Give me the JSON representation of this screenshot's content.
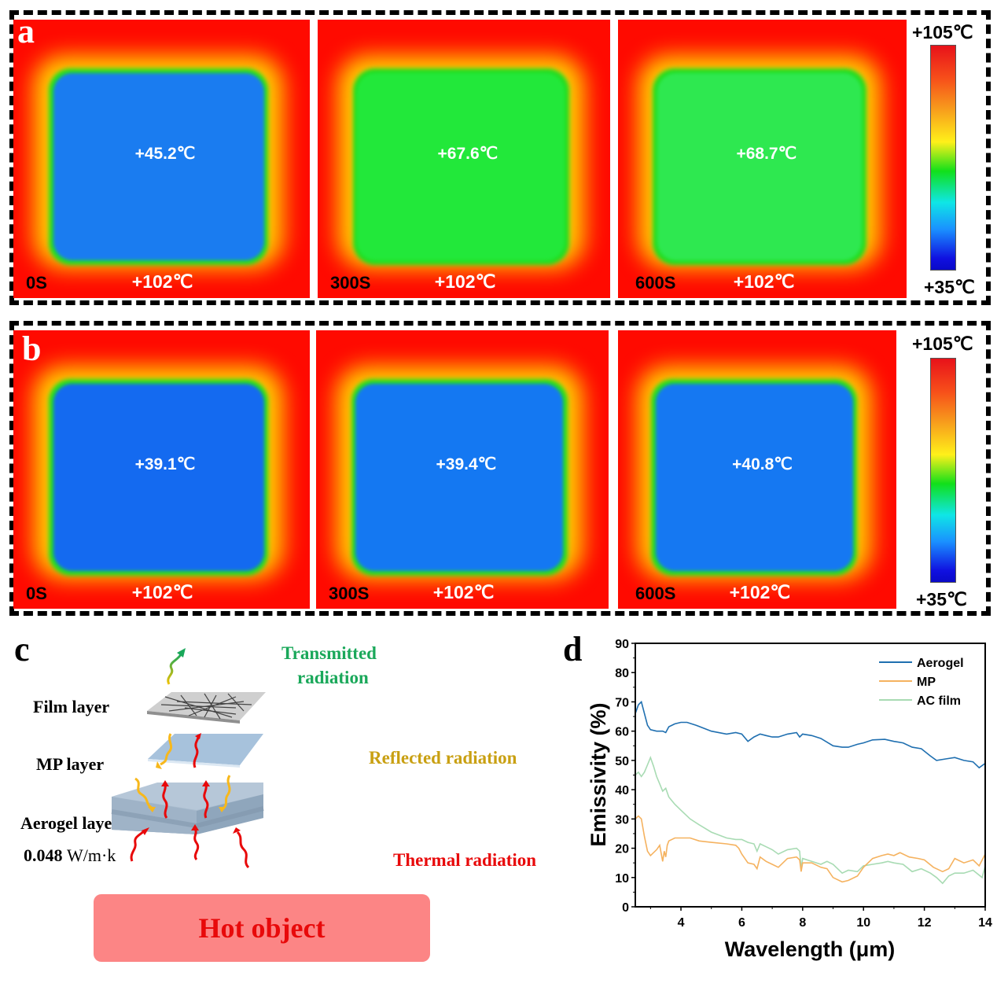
{
  "panel_a": {
    "letter": "a",
    "colorbar": {
      "max_label": "+105℃",
      "min_label": "+35℃"
    },
    "images": [
      {
        "time": "0S",
        "center_temp": "+45.2℃",
        "edge_temp": "+102℃",
        "core_color": "#1a7cf0"
      },
      {
        "time": "300S",
        "center_temp": "+67.6℃",
        "edge_temp": "+102℃",
        "core_color": "#22e83a"
      },
      {
        "time": "600S",
        "center_temp": "+68.7℃",
        "edge_temp": "+102℃",
        "core_color": "#2ee850"
      }
    ]
  },
  "panel_b": {
    "letter": "b",
    "colorbar": {
      "max_label": "+105℃",
      "min_label": "+35℃"
    },
    "images": [
      {
        "time": "0S",
        "center_temp": "+39.1℃",
        "edge_temp": "+102℃",
        "core_color": "#146af0"
      },
      {
        "time": "300S",
        "center_temp": "+39.4℃",
        "edge_temp": "+102℃",
        "core_color": "#1478f2"
      },
      {
        "time": "600S",
        "center_temp": "+40.8℃",
        "edge_temp": "+102℃",
        "core_color": "#1578f2"
      }
    ]
  },
  "panel_c": {
    "letter": "c",
    "film_layer": "Film layer",
    "mp_layer": "MP layer",
    "aerogel_layer": "Aerogel layer",
    "conductivity_value": "0.048",
    "conductivity_unit": "W/m·k",
    "transmitted_line1": "Transmitted",
    "transmitted_line2": "radiation",
    "reflected": "Reflected radiation",
    "thermal": "Thermal radiation",
    "hot_object": "Hot object",
    "colors": {
      "transmitted": "#1aa85a",
      "reflected": "#c9a012",
      "thermal": "#e8090a"
    }
  },
  "chart_data": {
    "type": "line",
    "panel_letter": "d",
    "title": "",
    "xlabel": "Wavelength (μm)",
    "ylabel": "Emissivity (%)",
    "xlim": [
      2.5,
      14
    ],
    "ylim": [
      0,
      90
    ],
    "xticks": [
      4,
      6,
      8,
      10,
      12,
      14
    ],
    "yticks": [
      0,
      10,
      20,
      30,
      40,
      50,
      60,
      70,
      80,
      90
    ],
    "grid": false,
    "legend_position": "top-right",
    "series": [
      {
        "name": "Aerogel",
        "color": "#1f6fb0",
        "x": [
          2.5,
          2.6,
          2.7,
          2.8,
          2.9,
          3.0,
          3.2,
          3.4,
          3.5,
          3.6,
          3.8,
          4.0,
          4.2,
          4.5,
          5.0,
          5.5,
          5.8,
          6.0,
          6.2,
          6.4,
          6.6,
          6.8,
          7.0,
          7.2,
          7.5,
          7.8,
          7.9,
          8.0,
          8.3,
          8.6,
          9.0,
          9.3,
          9.5,
          9.8,
          10.0,
          10.3,
          10.7,
          11.0,
          11.3,
          11.6,
          11.9,
          12.2,
          12.4,
          12.7,
          13.0,
          13.3,
          13.6,
          13.8,
          14.0
        ],
        "values": [
          66,
          69,
          70,
          66,
          62,
          60.5,
          60,
          60,
          59.5,
          61.5,
          62.5,
          63,
          63,
          62,
          60,
          59,
          59.5,
          59,
          56.5,
          58,
          59,
          58.5,
          58,
          58,
          59,
          59.5,
          58,
          59,
          58.5,
          57.5,
          55,
          54.5,
          54.5,
          55.5,
          56,
          57,
          57.2,
          56.5,
          56,
          54.5,
          54,
          51.5,
          50,
          50.5,
          51,
          50,
          49.5,
          47.5,
          49
        ]
      },
      {
        "name": "MP",
        "color": "#f5b25f",
        "x": [
          2.5,
          2.6,
          2.7,
          2.8,
          2.9,
          3.0,
          3.2,
          3.3,
          3.4,
          3.45,
          3.5,
          3.55,
          3.6,
          3.8,
          4.0,
          4.3,
          4.6,
          5.0,
          5.5,
          5.8,
          5.9,
          6.0,
          6.2,
          6.4,
          6.5,
          6.6,
          6.8,
          7.0,
          7.2,
          7.5,
          7.8,
          7.9,
          7.95,
          8.0,
          8.3,
          8.6,
          8.8,
          9.0,
          9.3,
          9.5,
          9.8,
          10.0,
          10.3,
          10.6,
          10.8,
          11.0,
          11.2,
          11.5,
          11.8,
          12.0,
          12.3,
          12.6,
          12.8,
          13.0,
          13.3,
          13.6,
          13.8,
          14.0
        ],
        "values": [
          30,
          31,
          30,
          24,
          19,
          17.5,
          19.5,
          21,
          15.5,
          19,
          17,
          21,
          22.5,
          23.5,
          23.5,
          23.5,
          22.5,
          22,
          21.5,
          21,
          20,
          18,
          15,
          14.5,
          13,
          17,
          15.5,
          14.5,
          13.5,
          16.5,
          17,
          16,
          12,
          15,
          15,
          13.5,
          13,
          10,
          8.5,
          9,
          10.5,
          13.5,
          16.5,
          17.5,
          18,
          17.5,
          18.5,
          17,
          16.5,
          16,
          13.5,
          12,
          13,
          16.5,
          15,
          16,
          14,
          18
        ]
      },
      {
        "name": "AC film",
        "color": "#a8dbb3",
        "x": [
          2.5,
          2.6,
          2.7,
          2.8,
          2.9,
          3.0,
          3.1,
          3.2,
          3.3,
          3.4,
          3.5,
          3.6,
          3.8,
          4.0,
          4.3,
          4.6,
          5.0,
          5.5,
          5.8,
          6.0,
          6.2,
          6.4,
          6.5,
          6.6,
          6.8,
          7.0,
          7.2,
          7.5,
          7.8,
          7.9,
          7.95,
          8.0,
          8.3,
          8.6,
          8.8,
          9.0,
          9.3,
          9.5,
          9.8,
          10.0,
          10.3,
          10.6,
          10.8,
          11.0,
          11.3,
          11.6,
          11.9,
          12.2,
          12.4,
          12.6,
          12.8,
          13.0,
          13.3,
          13.6,
          13.9,
          14.0
        ],
        "values": [
          45,
          46,
          44.5,
          46,
          48.5,
          51,
          48,
          44.5,
          42,
          39.5,
          40.5,
          37.5,
          35,
          33,
          30,
          28,
          25.5,
          23.5,
          23,
          23,
          22,
          21.5,
          19,
          21.5,
          20.5,
          19.5,
          18,
          19.5,
          20,
          19,
          13,
          16.5,
          15.5,
          14.5,
          15.5,
          14.5,
          11.5,
          12.5,
          12,
          14,
          14.5,
          15,
          15.5,
          15,
          14.5,
          12,
          13,
          11.5,
          10,
          8,
          10.5,
          11.5,
          11.5,
          12.5,
          10,
          14
        ]
      }
    ]
  }
}
